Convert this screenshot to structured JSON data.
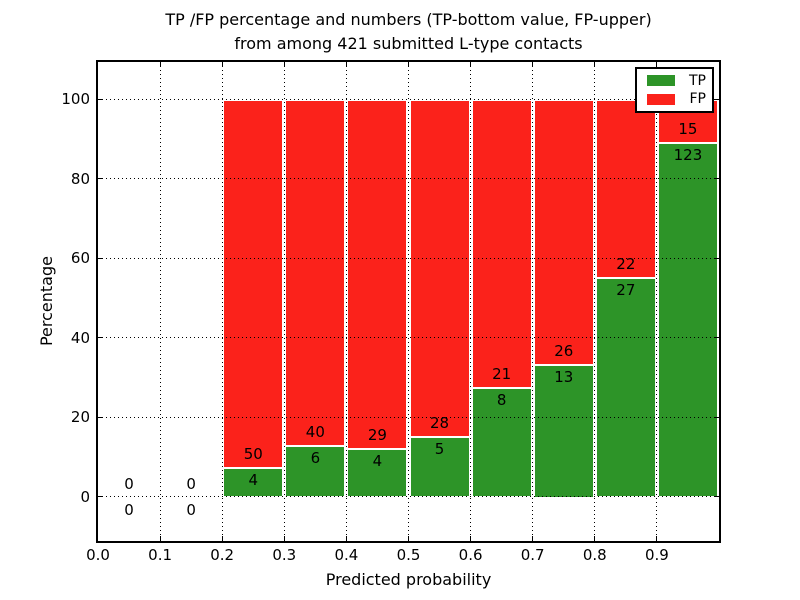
{
  "figure": {
    "title_line1": "TP /FP percentage and numbers (TP-bottom value, FP-upper)",
    "title_line2": "from among 421 submitted L-type contacts",
    "xlabel": "Predicted probability",
    "ylabel": "Percentage"
  },
  "legend": {
    "position": "upper right",
    "items": [
      {
        "label": "TP",
        "color": "#2D9428"
      },
      {
        "label": "FP",
        "color": "#FB221B"
      }
    ]
  },
  "colors": {
    "tp_green": "#2D9428",
    "fp_red": "#FB221B",
    "bar_edge": "#ffffff",
    "grid": "#000000",
    "background": "#ffffff"
  },
  "chart_data": {
    "type": "bar",
    "stacked": true,
    "normalized_total_percent": 100,
    "title": "TP /FP percentage and numbers (TP-bottom value, FP-upper) from among 421 submitted L-type contacts",
    "xlabel": "Predicted probability",
    "ylabel": "Percentage",
    "total_contacts": 421,
    "grid": "dotted",
    "bin_edges": [
      0.0,
      0.1,
      0.2,
      0.3,
      0.4,
      0.5,
      0.6,
      0.7,
      0.8,
      0.9,
      1.0
    ],
    "xtick_labels": [
      "0.0",
      "0.1",
      "0.2",
      "0.3",
      "0.4",
      "0.5",
      "0.6",
      "0.7",
      "0.8",
      "0.9"
    ],
    "ytick_values": [
      0,
      20,
      40,
      60,
      80,
      100
    ],
    "ytick_labels": [
      "0",
      "20",
      "40",
      "60",
      "80",
      "100"
    ],
    "series": [
      {
        "name": "TP",
        "color": "#2D9428",
        "counts": [
          0,
          0,
          4,
          6,
          4,
          5,
          8,
          13,
          27,
          123
        ],
        "percent_of_bin": [
          0,
          0,
          7.4,
          13.0,
          12.1,
          15.2,
          27.6,
          33.3,
          55.1,
          89.1
        ]
      },
      {
        "name": "FP",
        "color": "#FB221B",
        "counts": [
          0,
          0,
          50,
          40,
          29,
          28,
          21,
          26,
          22,
          15
        ],
        "percent_of_bin": [
          0,
          0,
          92.6,
          87.0,
          87.9,
          84.8,
          72.4,
          66.7,
          44.9,
          10.9
        ]
      }
    ]
  }
}
